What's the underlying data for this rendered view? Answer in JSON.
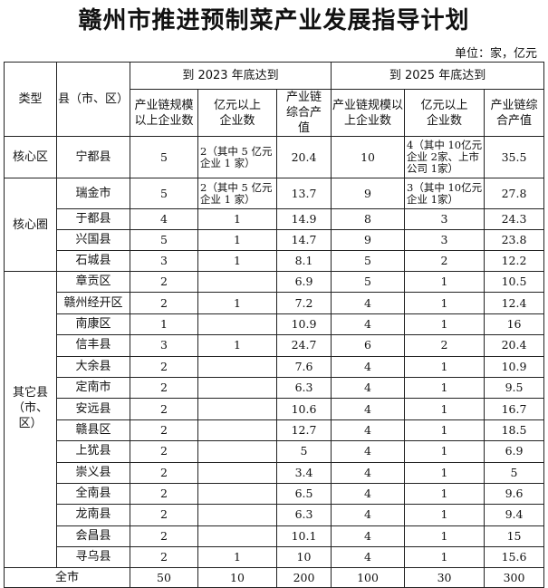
{
  "title": "赣州市推进预制菜产业发展指导计划",
  "unit": "单位：家，亿元",
  "header": {
    "type": "类型",
    "county": "县（市、区）",
    "period_2023": "到 2023 年底达到",
    "period_2025": "到 2025 年底达到",
    "col_scale": "产业链规模以上企业数",
    "col_yi": "亿元以上企业数",
    "col_value": "产业链综合产值"
  },
  "groups": [
    {
      "label": "核心区",
      "rows": [
        {
          "name": "宁都县",
          "v": [
            "5",
            "2（其中 5 亿元企业 1 家）",
            "20.4",
            "10",
            "4（其中 10亿元企业 2家、上市公司 1家）",
            "35.5"
          ]
        }
      ]
    },
    {
      "label": "核心圈",
      "rows": [
        {
          "name": "瑞金市",
          "v": [
            "5",
            "2（其中 5 亿元企业 1 家）",
            "13.7",
            "9",
            "3（其中 10亿元企业 1家）",
            "27.8"
          ]
        },
        {
          "name": "于都县",
          "v": [
            "4",
            "1",
            "14.9",
            "8",
            "3",
            "24.3"
          ]
        },
        {
          "name": "兴国县",
          "v": [
            "5",
            "1",
            "14.7",
            "9",
            "3",
            "23.8"
          ]
        },
        {
          "name": "石城县",
          "v": [
            "3",
            "1",
            "8.1",
            "5",
            "2",
            "12.2"
          ]
        }
      ]
    },
    {
      "label": "其它县（市、区）",
      "rows": [
        {
          "name": "章贡区",
          "v": [
            "2",
            "",
            "6.9",
            "5",
            "1",
            "10.5"
          ]
        },
        {
          "name": "赣州经开区",
          "v": [
            "2",
            "1",
            "7.2",
            "4",
            "1",
            "12.4"
          ]
        },
        {
          "name": "南康区",
          "v": [
            "1",
            "",
            "10.9",
            "4",
            "1",
            "16"
          ]
        },
        {
          "name": "信丰县",
          "v": [
            "3",
            "1",
            "24.7",
            "6",
            "2",
            "20.4"
          ]
        },
        {
          "name": "大余县",
          "v": [
            "2",
            "",
            "7.6",
            "4",
            "1",
            "10.9"
          ]
        },
        {
          "name": "定南市",
          "v": [
            "2",
            "",
            "6.3",
            "4",
            "1",
            "9.5"
          ]
        },
        {
          "name": "安远县",
          "v": [
            "2",
            "",
            "10.6",
            "4",
            "1",
            "16.7"
          ]
        },
        {
          "name": "赣县区",
          "v": [
            "2",
            "",
            "12.7",
            "4",
            "1",
            "18.5"
          ]
        },
        {
          "name": "上犹县",
          "v": [
            "2",
            "",
            "5",
            "4",
            "1",
            "6.9"
          ]
        },
        {
          "name": "崇义县",
          "v": [
            "2",
            "",
            "3.4",
            "4",
            "1",
            "5"
          ]
        },
        {
          "name": "全南县",
          "v": [
            "2",
            "",
            "6.5",
            "4",
            "1",
            "9.6"
          ]
        },
        {
          "name": "龙南县",
          "v": [
            "2",
            "",
            "6.3",
            "4",
            "1",
            "9.4"
          ]
        },
        {
          "name": "会昌县",
          "v": [
            "2",
            "",
            "10.1",
            "4",
            "1",
            "15"
          ]
        },
        {
          "name": "寻乌县",
          "v": [
            "2",
            "1",
            "10",
            "4",
            "1",
            "15.6"
          ]
        }
      ]
    }
  ],
  "total": {
    "label": "全市",
    "v": [
      "50",
      "10",
      "200",
      "100",
      "30",
      "300"
    ]
  }
}
